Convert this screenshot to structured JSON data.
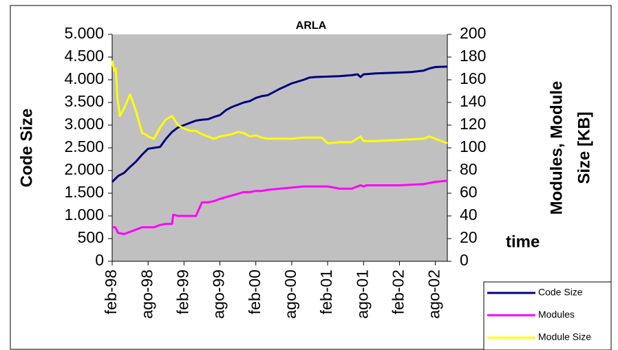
{
  "chart_data": {
    "type": "line",
    "title": "ARLA",
    "ylabel": "Code Size",
    "y2label": [
      "Modules, Module",
      "Size [KB]"
    ],
    "xlabel": "time",
    "xlim": [
      0,
      56
    ],
    "xticks": [
      {
        "value": 0,
        "label": "feb-98"
      },
      {
        "value": 6,
        "label": "ago-98"
      },
      {
        "value": 12,
        "label": "feb-99"
      },
      {
        "value": 18,
        "label": "ago-99"
      },
      {
        "value": 24,
        "label": "feb-00"
      },
      {
        "value": 30,
        "label": "ago-00"
      },
      {
        "value": 36,
        "label": "feb-01"
      },
      {
        "value": 42,
        "label": "ago-01"
      },
      {
        "value": 48,
        "label": "feb-02"
      },
      {
        "value": 54,
        "label": "ago-02"
      }
    ],
    "ylim": [
      0,
      5000
    ],
    "yticks": [
      0,
      {
        "value": 500,
        "label": "500"
      },
      {
        "value": 1000,
        "label": "1.000"
      },
      {
        "value": 1500,
        "label": "1.500"
      },
      {
        "value": 2000,
        "label": "2.000"
      },
      {
        "value": 2500,
        "label": "2.500"
      },
      {
        "value": 3000,
        "label": "3.000"
      },
      {
        "value": 3500,
        "label": "3.500"
      },
      {
        "value": 4000,
        "label": "4.000"
      },
      {
        "value": 4500,
        "label": "4.500"
      },
      {
        "value": 5000,
        "label": "5.000"
      }
    ],
    "y2lim": [
      0,
      200
    ],
    "y2ticks": [
      0,
      20,
      40,
      60,
      80,
      100,
      120,
      140,
      160,
      180,
      200
    ],
    "background": "#c0c0c0",
    "series": [
      {
        "name": "Code Size",
        "color": "#000080",
        "x": [
          0,
          1,
          2,
          3,
          4,
          5,
          6,
          7,
          8,
          9,
          10,
          11,
          12,
          13,
          14,
          15,
          16,
          17,
          18,
          19,
          20,
          22,
          23,
          24,
          25,
          26,
          27,
          28,
          30,
          32,
          33,
          34,
          36,
          38,
          40,
          41,
          41.5,
          42,
          44,
          46,
          48,
          50,
          52,
          53,
          54,
          56
        ],
        "values": [
          1750,
          1880,
          1950,
          2080,
          2200,
          2350,
          2480,
          2500,
          2520,
          2700,
          2850,
          2950,
          3000,
          3050,
          3100,
          3120,
          3130,
          3180,
          3220,
          3330,
          3400,
          3500,
          3530,
          3600,
          3640,
          3660,
          3730,
          3800,
          3920,
          4000,
          4050,
          4060,
          4070,
          4080,
          4100,
          4120,
          4060,
          4120,
          4140,
          4150,
          4160,
          4170,
          4200,
          4250,
          4280,
          4290
        ]
      },
      {
        "name": "Modules",
        "color": "#ff00ff",
        "axis": "y2",
        "x": [
          0,
          0.5,
          1,
          2,
          3,
          4,
          5,
          6,
          7,
          8,
          9,
          10,
          10.2,
          11,
          12,
          14,
          15,
          16,
          17,
          18,
          20,
          22,
          23,
          24,
          25,
          26,
          28,
          30,
          32,
          34,
          36,
          38,
          40,
          41.5,
          42,
          42.5,
          44,
          48,
          52,
          54,
          56
        ],
        "values": [
          30,
          30,
          25,
          24,
          26,
          28,
          30,
          30,
          30,
          32,
          33,
          33,
          41,
          40,
          40,
          40,
          52,
          52,
          53,
          55,
          58,
          61,
          61,
          62,
          62,
          63,
          64,
          65,
          66,
          66,
          66,
          64,
          64,
          67,
          66,
          67,
          67,
          67,
          68,
          70,
          71
        ]
      },
      {
        "name": "Module Size",
        "color": "#ffff00",
        "axis": "y2",
        "x": [
          0,
          0.3,
          0.6,
          0.9,
          1.3,
          2,
          3,
          4,
          5,
          5.6,
          6,
          7,
          8,
          9,
          10,
          11,
          12,
          13,
          14,
          15,
          16,
          17,
          18,
          20,
          21,
          22,
          23,
          24,
          25,
          26,
          28,
          30,
          32,
          34,
          35,
          36,
          38,
          40,
          41.5,
          42,
          44,
          48,
          52,
          53,
          54,
          56
        ],
        "values": [
          177,
          168,
          170,
          143,
          128,
          135,
          147,
          132,
          113,
          112,
          110,
          108,
          118,
          125,
          128,
          120,
          117,
          115,
          115,
          112,
          110,
          108,
          110,
          112,
          114,
          113,
          110,
          111,
          109,
          108,
          108,
          108,
          109,
          109,
          109,
          104,
          105,
          105,
          110,
          106,
          106,
          107,
          108,
          110,
          108,
          104
        ]
      }
    ]
  }
}
